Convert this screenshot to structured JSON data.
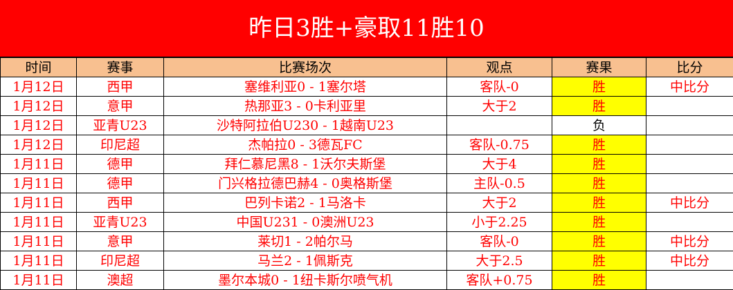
{
  "title": "昨日3胜+豪取11胜10",
  "headers": [
    "时间",
    "赛事",
    "比赛场次",
    "观点",
    "赛果",
    "比分"
  ],
  "rows": [
    {
      "date": "1月12日",
      "league": "西甲",
      "match": "塞维利亚0 - 1塞尔塔",
      "view": "客队-0",
      "result": "胜",
      "score": "中比分"
    },
    {
      "date": "1月12日",
      "league": "意甲",
      "match": "热那亚3 - 0卡利亚里",
      "view": "大于2",
      "result": "胜",
      "score": ""
    },
    {
      "date": "1月12日",
      "league": "亚青U23",
      "match": "沙特阿拉伯U230 - 1越南U23",
      "view": "",
      "result": "负",
      "score": ""
    },
    {
      "date": "1月12日",
      "league": "印尼超",
      "match": "杰帕拉0 - 3德瓦FC",
      "view": "客队-0.75",
      "result": "胜",
      "score": ""
    },
    {
      "date": "1月11日",
      "league": "德甲",
      "match": "拜仁慕尼黑8 - 1沃尔夫斯堡",
      "view": "大于4",
      "result": "胜",
      "score": ""
    },
    {
      "date": "1月11日",
      "league": "德甲",
      "match": "门兴格拉德巴赫4 - 0奥格斯堡",
      "view": "主队-0.5",
      "result": "胜",
      "score": ""
    },
    {
      "date": "1月11日",
      "league": "西甲",
      "match": "巴列卡诺2 - 1马洛卡",
      "view": "大于2",
      "result": "胜",
      "score": "中比分"
    },
    {
      "date": "1月11日",
      "league": "亚青U23",
      "match": "中国U231 - 0澳洲U23",
      "view": "小于2.25",
      "result": "胜",
      "score": ""
    },
    {
      "date": "1月11日",
      "league": "意甲",
      "match": "莱切1 - 2帕尔马",
      "view": "客队-0",
      "result": "胜",
      "score": "中比分"
    },
    {
      "date": "1月11日",
      "league": "印尼超",
      "match": "马兰2 - 1佩斯克",
      "view": "大于2.5",
      "result": "胜",
      "score": "中比分"
    },
    {
      "date": "1月11日",
      "league": "澳超",
      "match": "墨尔本城0 - 1纽卡斯尔喷气机",
      "view": "客队+0.75",
      "result": "胜",
      "score": ""
    }
  ],
  "colors": {
    "title_bg": "#ff0000",
    "header_bg": "#f8c090",
    "win_bg": "#ffff00",
    "text": "#ff0000"
  }
}
